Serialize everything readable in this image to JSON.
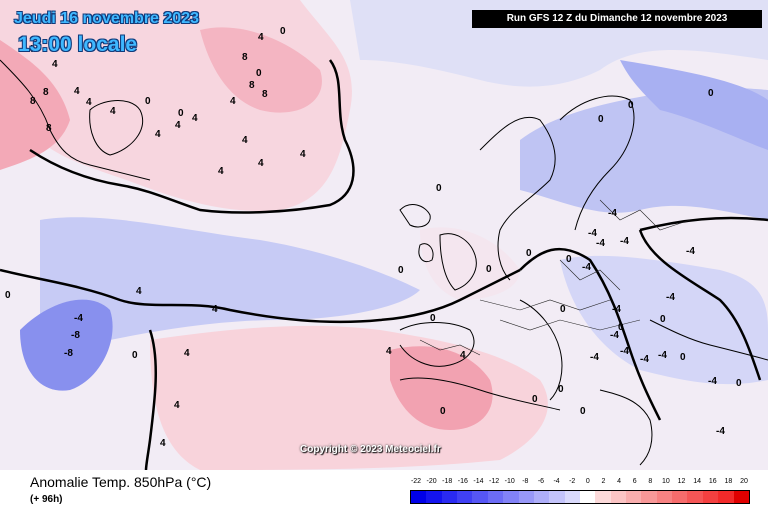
{
  "header": {
    "date": "Jeudi 16 novembre 2023",
    "time": "13:00 locale",
    "run": "Run GFS 12 Z du Dimanche 12 novembre 2023"
  },
  "footer": {
    "parameter": "Anomalie Temp. 850hPa (°C)",
    "lead_time": "(+ 96h)",
    "copyright": "Copyright © 2023 Meteociel.fr"
  },
  "legend": {
    "labels": [
      "-22",
      "-20",
      "-18",
      "-16",
      "-14",
      "-12",
      "-10",
      "-8",
      "-6",
      "-4",
      "-2",
      "0",
      "2",
      "4",
      "6",
      "8",
      "10",
      "12",
      "14",
      "16",
      "18",
      "20"
    ],
    "colors": [
      "#0000e8",
      "#1414ef",
      "#2a2af2",
      "#4040f4",
      "#5656f5",
      "#6c6cf6",
      "#8282f7",
      "#9898f8",
      "#aeaef9",
      "#c4c4fb",
      "#dadafc",
      "#ffffff",
      "#fcdada",
      "#fbc4c4",
      "#f9aeae",
      "#f89898",
      "#f78282",
      "#f66c6c",
      "#f55656",
      "#f44040",
      "#f22a2a",
      "#e00000"
    ]
  },
  "contour_labels": {
    "values": [
      "4",
      "4",
      "4",
      "4",
      "8",
      "8",
      "8",
      "4",
      "4",
      "4",
      "4",
      "0",
      "0",
      "4",
      "4",
      "4",
      "4",
      "4",
      "4",
      "8",
      "8",
      "8",
      "0",
      "0",
      "0",
      "0",
      "0",
      "4",
      "4",
      "0",
      "0",
      "0",
      "-4",
      "-4",
      "-4",
      "-8",
      "-8",
      "-4",
      "0",
      "0",
      "-4",
      "-4",
      "-4",
      "0",
      "0",
      "0",
      "0",
      "4",
      "4",
      "4",
      "4",
      "4",
      "0",
      "0",
      "-4",
      "-4",
      "-4",
      "0",
      "0",
      "0",
      "-4",
      "-4",
      "0",
      "-4",
      "-4",
      "-4",
      "-4",
      "0",
      "0"
    ]
  },
  "colors": {
    "title_blue": "#3fb8ff",
    "anomaly_warm": "#f4b8c4",
    "anomaly_cold": "#a8b0f4",
    "neutral": "#ffffff"
  }
}
